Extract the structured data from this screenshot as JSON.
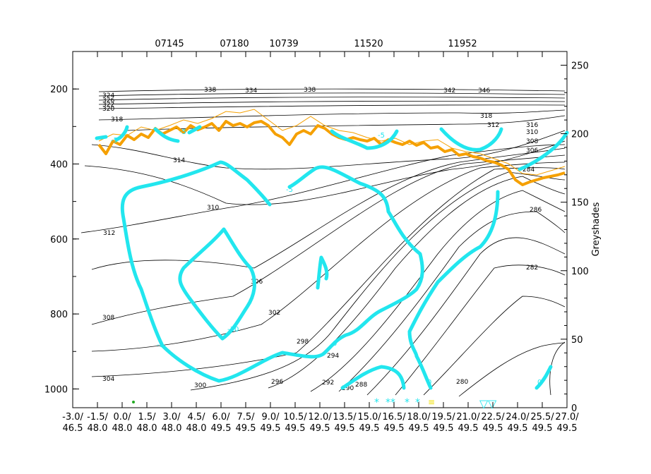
{
  "chart_data": {
    "type": "line",
    "title": "",
    "stations": [
      "07145",
      "07180",
      "10739",
      "11520",
      "11952"
    ],
    "x_tick_labels": [
      {
        "line1": "-3.0/",
        "line2": "46.5"
      },
      {
        "line1": "-1.5/",
        "line2": "48.0"
      },
      {
        "line1": "0.0/",
        "line2": "48.0"
      },
      {
        "line1": "1.5/",
        "line2": "48.0"
      },
      {
        "line1": "3.0/",
        "line2": "48.0"
      },
      {
        "line1": "4.5/",
        "line2": "48.0"
      },
      {
        "line1": "6.0/",
        "line2": "49.5"
      },
      {
        "line1": "7.5/",
        "line2": "49.5"
      },
      {
        "line1": "9.0/",
        "line2": "49.5"
      },
      {
        "line1": "10.5/",
        "line2": "49.5"
      },
      {
        "line1": "12.0/",
        "line2": "49.5"
      },
      {
        "line1": "13.5/",
        "line2": "49.5"
      },
      {
        "line1": "15.0/",
        "line2": "49.5"
      },
      {
        "line1": "16.5/",
        "line2": "49.5"
      },
      {
        "line1": "18.0/",
        "line2": "49.5"
      },
      {
        "line1": "19.5/",
        "line2": "49.5"
      },
      {
        "line1": "21.0/",
        "line2": "49.5"
      },
      {
        "line1": "22.5/",
        "line2": "49.5"
      },
      {
        "line1": "24.0/",
        "line2": "49.5"
      },
      {
        "line1": "25.5/",
        "line2": "49.5"
      },
      {
        "line1": "27.0/",
        "line2": "49.5"
      }
    ],
    "left_axis": {
      "ticks": [
        "200",
        "400",
        "600",
        "800",
        "1000"
      ],
      "ylim": [
        1050,
        100
      ]
    },
    "right_axis": {
      "label": "Greyshades",
      "ticks": [
        "0",
        "50",
        "100",
        "150",
        "200",
        "250"
      ],
      "ylim": [
        0,
        260
      ]
    },
    "theta_contour_labels": [
      "324",
      "326",
      "322",
      "320",
      "318",
      "338",
      "334",
      "338",
      "342",
      "346",
      "314",
      "312",
      "310",
      "308",
      "306",
      "304",
      "302",
      "300",
      "298",
      "296",
      "294",
      "292",
      "290",
      "288",
      "286",
      "284",
      "282",
      "280",
      "318",
      "316",
      "312",
      "308",
      "310",
      "306"
    ],
    "cyan_labels": [
      "-5",
      "-5",
      "-5",
      "-10",
      "-5",
      "0",
      "-5",
      "0",
      "0"
    ],
    "colors": {
      "cyan": "#22e6ee",
      "orange": "#f5a000",
      "contour": "#000000"
    }
  }
}
